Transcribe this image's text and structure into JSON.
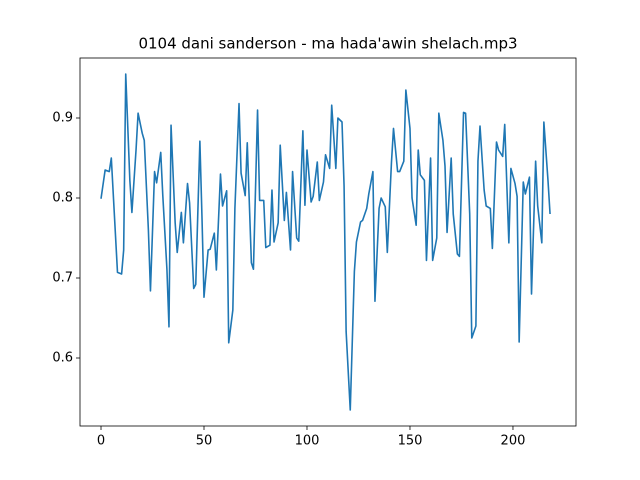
{
  "chart_data": {
    "type": "line",
    "title": "0104 dani sanderson - ma hada'awin shelach.mp3",
    "x": [
      0,
      2,
      4,
      5,
      8,
      10,
      11,
      12,
      14,
      15,
      17,
      18,
      20,
      21,
      23,
      24,
      26,
      27,
      29,
      30,
      32,
      33,
      34,
      36,
      37,
      39,
      40,
      42,
      43,
      45,
      46,
      48,
      49,
      50,
      52,
      53,
      55,
      56,
      58,
      59,
      61,
      62,
      64,
      65,
      67,
      68,
      70,
      71,
      73,
      74,
      76,
      77,
      79,
      80,
      82,
      83,
      84,
      86,
      87,
      89,
      90,
      92,
      93,
      95,
      96,
      98,
      99,
      100,
      102,
      103,
      105,
      106,
      108,
      109,
      111,
      112,
      114,
      115,
      117,
      118,
      119,
      121,
      123,
      124,
      126,
      127,
      129,
      130,
      132,
      133,
      135,
      136,
      138,
      139,
      141,
      142,
      144,
      145,
      147,
      148,
      150,
      151,
      153,
      154,
      155,
      157,
      158,
      160,
      161,
      163,
      164,
      166,
      167,
      168,
      170,
      171,
      173,
      174,
      176,
      177,
      179,
      180,
      182,
      183,
      184,
      186,
      187,
      189,
      190,
      192,
      193,
      195,
      196,
      198,
      199,
      201,
      202,
      203,
      205,
      206,
      208,
      209,
      211,
      212,
      214,
      215,
      217,
      218
    ],
    "series": [
      {
        "color": "#1f77b4",
        "values": [
          0.799,
          0.835,
          0.833,
          0.85,
          0.707,
          0.705,
          0.735,
          0.955,
          0.822,
          0.782,
          0.86,
          0.906,
          0.881,
          0.872,
          0.76,
          0.684,
          0.833,
          0.819,
          0.857,
          0.803,
          0.711,
          0.639,
          0.891,
          0.769,
          0.732,
          0.782,
          0.744,
          0.818,
          0.794,
          0.687,
          0.692,
          0.871,
          0.778,
          0.676,
          0.735,
          0.736,
          0.756,
          0.71,
          0.83,
          0.79,
          0.809,
          0.619,
          0.66,
          0.787,
          0.918,
          0.831,
          0.803,
          0.869,
          0.719,
          0.711,
          0.91,
          0.797,
          0.797,
          0.738,
          0.741,
          0.81,
          0.745,
          0.769,
          0.866,
          0.772,
          0.807,
          0.735,
          0.833,
          0.75,
          0.746,
          0.884,
          0.791,
          0.86,
          0.795,
          0.802,
          0.845,
          0.797,
          0.82,
          0.854,
          0.837,
          0.916,
          0.837,
          0.9,
          0.895,
          0.815,
          0.633,
          0.535,
          0.708,
          0.745,
          0.77,
          0.772,
          0.787,
          0.805,
          0.833,
          0.671,
          0.787,
          0.8,
          0.789,
          0.732,
          0.844,
          0.887,
          0.833,
          0.833,
          0.846,
          0.935,
          0.887,
          0.8,
          0.766,
          0.86,
          0.829,
          0.822,
          0.722,
          0.85,
          0.722,
          0.75,
          0.906,
          0.872,
          0.84,
          0.757,
          0.85,
          0.78,
          0.73,
          0.727,
          0.907,
          0.906,
          0.78,
          0.625,
          0.64,
          0.846,
          0.89,
          0.81,
          0.79,
          0.787,
          0.737,
          0.87,
          0.86,
          0.852,
          0.892,
          0.744,
          0.837,
          0.818,
          0.802,
          0.62,
          0.82,
          0.805,
          0.826,
          0.68,
          0.846,
          0.79,
          0.744,
          0.895,
          0.822,
          0.78
        ]
      }
    ],
    "xlim": [
      -10.2,
      230.6
    ],
    "ylim": [
      0.515,
      0.975
    ],
    "xticks": [
      0,
      50,
      100,
      150,
      200
    ],
    "yticks": [
      0.6,
      0.7,
      0.8,
      0.9
    ]
  }
}
